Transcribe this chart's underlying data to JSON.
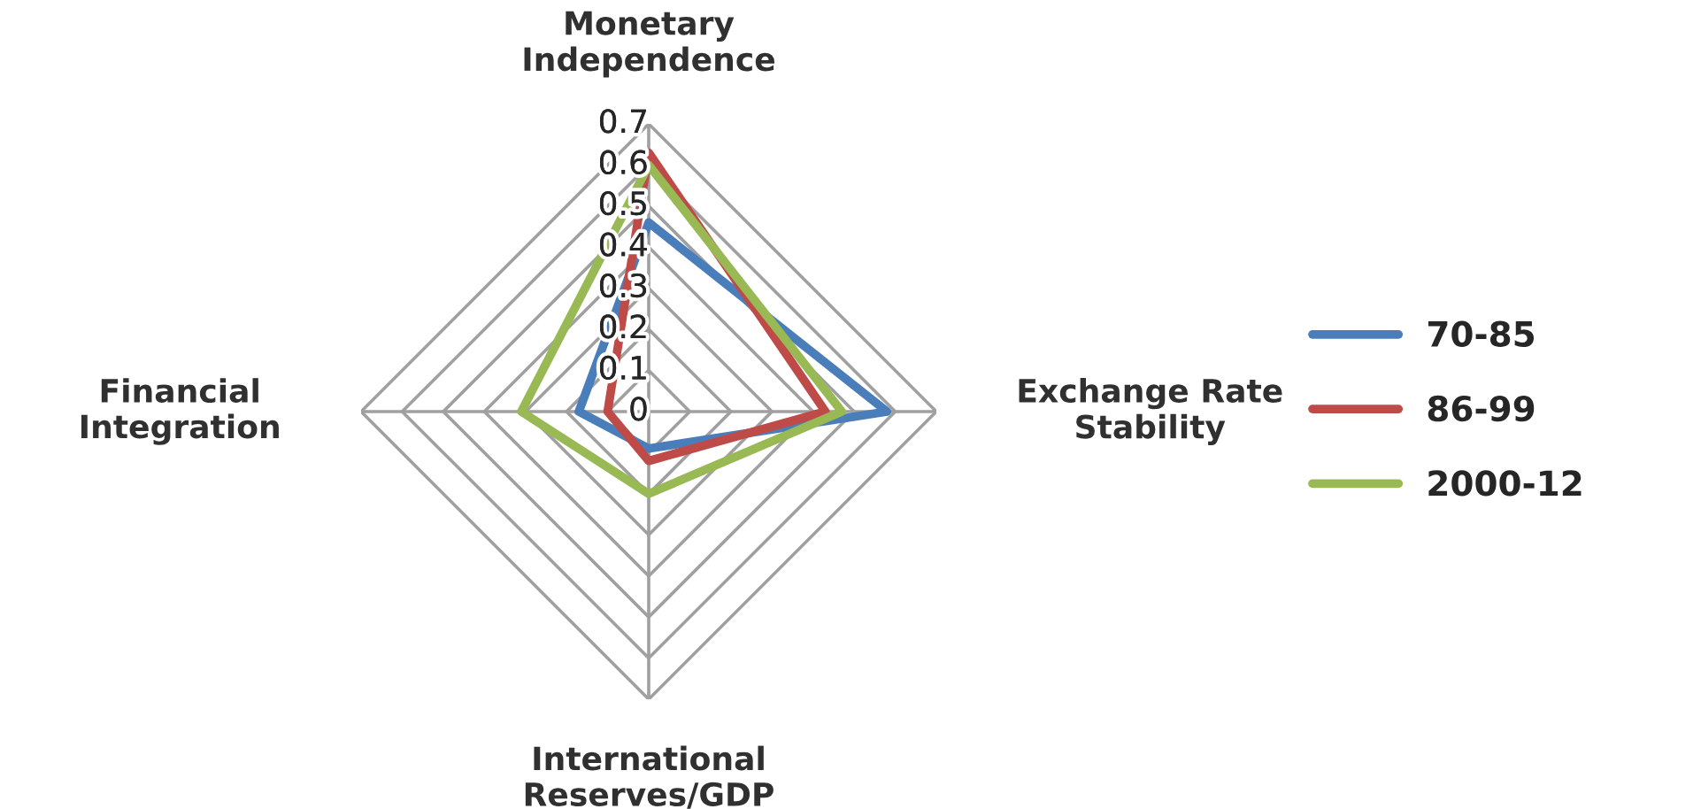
{
  "chart_data": {
    "type": "radar",
    "categories": [
      "Monetary\nIndependence",
      "Exchange Rate\nStability",
      "International\nReserves/GDP",
      "Financial\nIntegration"
    ],
    "series": [
      {
        "name": "70-85",
        "color": "#4a7ebb",
        "values": [
          0.46,
          0.58,
          0.09,
          0.17
        ]
      },
      {
        "name": "86-99",
        "color": "#be4b48",
        "values": [
          0.63,
          0.43,
          0.12,
          0.1
        ]
      },
      {
        "name": "2000-12",
        "color": "#98b954",
        "values": [
          0.6,
          0.47,
          0.2,
          0.31
        ]
      }
    ],
    "ylim": [
      0,
      0.7
    ],
    "yticks": [
      0,
      0.1,
      0.2,
      0.3,
      0.4,
      0.5,
      0.6,
      0.7
    ],
    "grid": true,
    "legend": "right",
    "marker": "none",
    "line_style": "solid"
  }
}
